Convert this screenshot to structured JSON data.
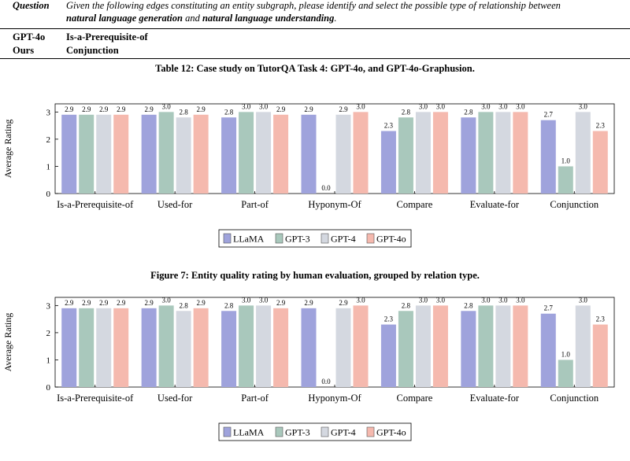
{
  "table": {
    "question_label": "Question",
    "question_text_part1": "Given the following edges constituting an entity subgraph, please identify and select the possible type of relationship between",
    "question_text_em1": "natural language generation",
    "question_text_and": " and ",
    "question_text_em2": "natural language understanding",
    "question_text_end": ".",
    "row1_label": "GPT-4o",
    "row1_value": "Is-a-Prerequisite-of",
    "row2_label": "Ours",
    "row2_value": "Conjunction",
    "caption": "Table 12: Case study on TutorQA Task 4: GPT-4o, and GPT-4o-Graphusion."
  },
  "figure_caption": "Figure 7: Entity quality rating by human evaluation, grouped by relation type.",
  "colors": {
    "LLaMA": "#9fa3dc",
    "GPT-3": "#a9c8bc",
    "GPT-4": "#d4d8e0",
    "GPT-4o": "#f5b9ae"
  },
  "chart_data": [
    {
      "type": "bar",
      "ylabel": "Average Rating",
      "xlabel": "",
      "ylim": [
        0,
        3.3
      ],
      "yticks": [
        "0",
        "1",
        "2",
        "3"
      ],
      "categories": [
        "Is-a-Prerequisite-of",
        "Used-for",
        "Part-of",
        "Hyponym-Of",
        "Compare",
        "Evaluate-for",
        "Conjunction"
      ],
      "series": [
        {
          "name": "LLaMA",
          "values": [
            2.9,
            2.9,
            2.8,
            2.9,
            2.3,
            2.8,
            2.7
          ],
          "labels": [
            "2.9",
            "2.9",
            "2.8",
            "2.9",
            "2.3",
            "2.8",
            "2.7"
          ]
        },
        {
          "name": "GPT-3",
          "values": [
            2.9,
            3.0,
            3.0,
            0.0,
            2.8,
            3.0,
            1.0
          ],
          "labels": [
            "2.9",
            "3.0",
            "3.0",
            "0.0",
            "2.8",
            "3.0",
            "1.0"
          ]
        },
        {
          "name": "GPT-4",
          "values": [
            2.9,
            2.8,
            3.0,
            2.9,
            3.0,
            3.0,
            3.0
          ],
          "labels": [
            "2.9",
            "2.8",
            "3.0",
            "2.9",
            "3.0",
            "3.0",
            "3.0"
          ]
        },
        {
          "name": "GPT-4o",
          "values": [
            2.9,
            2.9,
            2.9,
            3.0,
            3.0,
            3.0,
            2.3
          ],
          "labels": [
            "2.9",
            "2.9",
            "2.9",
            "3.0",
            "3.0",
            "3.0",
            "2.3"
          ]
        }
      ],
      "legend_position": "bottom-center"
    },
    {
      "type": "bar",
      "ylabel": "Average Rating",
      "xlabel": "",
      "ylim": [
        0,
        3.3
      ],
      "yticks": [
        "0",
        "1",
        "2",
        "3"
      ],
      "categories": [
        "Is-a-Prerequisite-of",
        "Used-for",
        "Part-of",
        "Hyponym-Of",
        "Compare",
        "Evaluate-for",
        "Conjunction"
      ],
      "series": [
        {
          "name": "LLaMA",
          "values": [
            2.9,
            2.9,
            2.8,
            2.9,
            2.3,
            2.8,
            2.7
          ],
          "labels": [
            "2.9",
            "2.9",
            "2.8",
            "2.9",
            "2.3",
            "2.8",
            "2.7"
          ]
        },
        {
          "name": "GPT-3",
          "values": [
            2.9,
            3.0,
            3.0,
            0.0,
            2.8,
            3.0,
            1.0
          ],
          "labels": [
            "2.9",
            "3.0",
            "3.0",
            "0.0",
            "2.8",
            "3.0",
            "1.0"
          ]
        },
        {
          "name": "GPT-4",
          "values": [
            2.9,
            2.8,
            3.0,
            2.9,
            3.0,
            3.0,
            3.0
          ],
          "labels": [
            "2.9",
            "2.8",
            "3.0",
            "2.9",
            "3.0",
            "3.0",
            "3.0"
          ]
        },
        {
          "name": "GPT-4o",
          "values": [
            2.9,
            2.9,
            2.9,
            3.0,
            3.0,
            3.0,
            2.3
          ],
          "labels": [
            "2.9",
            "2.9",
            "2.9",
            "3.0",
            "3.0",
            "3.0",
            "2.3"
          ]
        }
      ],
      "legend_position": "bottom-center"
    }
  ]
}
